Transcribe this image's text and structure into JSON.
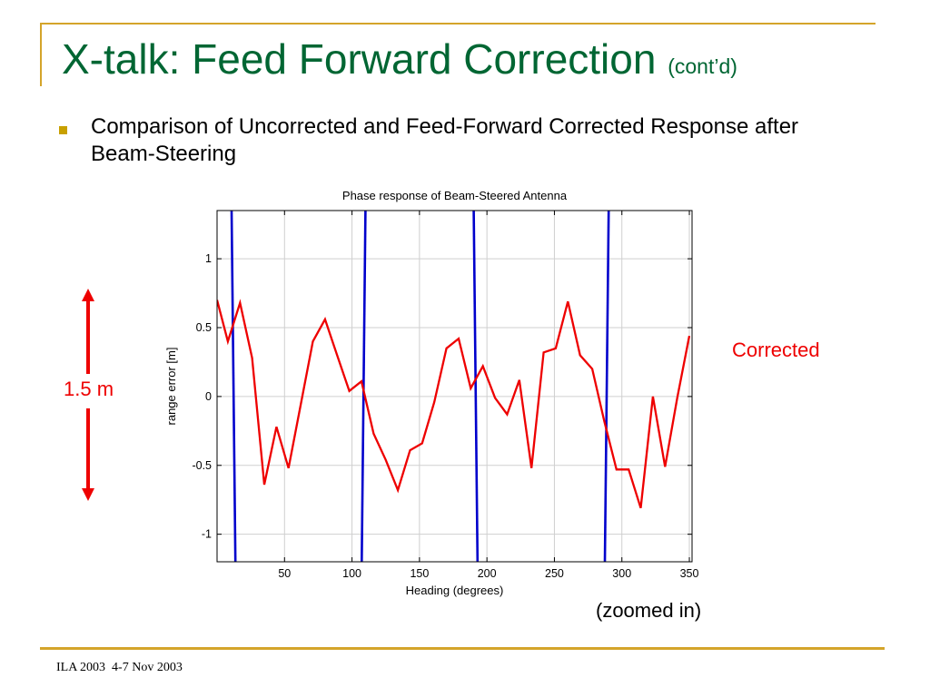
{
  "slide": {
    "title": "X-talk: Feed Forward Correction",
    "title_suffix": "(cont’d)",
    "bullet": "Comparison of Uncorrected and Feed-Forward Corrected Response after Beam-Steering",
    "corrected_label": "Corrected",
    "range_label": "1.5 m",
    "zoom_note": "(zoomed in)",
    "footer": "ILA 2003  4-7 Nov 2003"
  },
  "colors": {
    "title": "#006633",
    "accent_rule": "#d4a42a",
    "bullet": "#c8a000",
    "corrected": "#ee0000",
    "uncorrected": "#0000cc",
    "arrow": "#ee0000"
  },
  "chart_data": {
    "type": "line",
    "title": "Phase response of Beam-Steered Antenna",
    "xlabel": "Heading (degrees)",
    "ylabel": "range error [m]",
    "xlim": [
      0,
      352
    ],
    "ylim": [
      -1.2,
      1.35
    ],
    "xticks": [
      50,
      100,
      150,
      200,
      250,
      300,
      350
    ],
    "yticks": [
      1,
      0.5,
      0,
      -0.5,
      -1
    ],
    "ytick_labels": [
      "1",
      "0.5",
      "0",
      "-0.5",
      "-1"
    ],
    "grid": true,
    "series": [
      {
        "key": "corrected",
        "x": [
          0,
          8,
          17,
          26,
          35,
          44,
          53,
          62,
          71,
          80,
          89,
          98,
          107,
          116,
          125,
          134,
          143,
          152,
          161,
          170,
          179,
          188,
          197,
          206,
          215,
          224,
          233,
          242,
          251,
          260,
          269,
          278,
          287,
          296,
          305,
          314,
          323,
          332,
          341,
          350
        ],
        "y": [
          0.7,
          0.4,
          0.68,
          0.28,
          -0.64,
          -0.22,
          -0.52,
          -0.06,
          0.4,
          0.56,
          0.3,
          0.04,
          0.11,
          -0.27,
          -0.46,
          -0.68,
          -0.39,
          -0.34,
          -0.04,
          0.35,
          0.42,
          0.06,
          0.22,
          -0.01,
          -0.13,
          0.12,
          -0.52,
          0.32,
          0.35,
          0.69,
          0.3,
          0.2,
          -0.18,
          -0.53,
          -0.53,
          -0.81,
          0.0,
          -0.51,
          -0.01,
          0.44
        ]
      },
      {
        "key": "uncorrected",
        "segments": [
          {
            "x": [
              10.8,
              13.6
            ],
            "y": [
              1.35,
              -1.2
            ]
          },
          {
            "x": [
              107.2,
              110.0
            ],
            "y": [
              -1.2,
              1.35
            ]
          },
          {
            "x": [
              190.2,
              193.0
            ],
            "y": [
              1.35,
              -1.2
            ]
          },
          {
            "x": [
              287.4,
              290.2
            ],
            "y": [
              -1.2,
              1.35
            ]
          }
        ]
      }
    ]
  }
}
